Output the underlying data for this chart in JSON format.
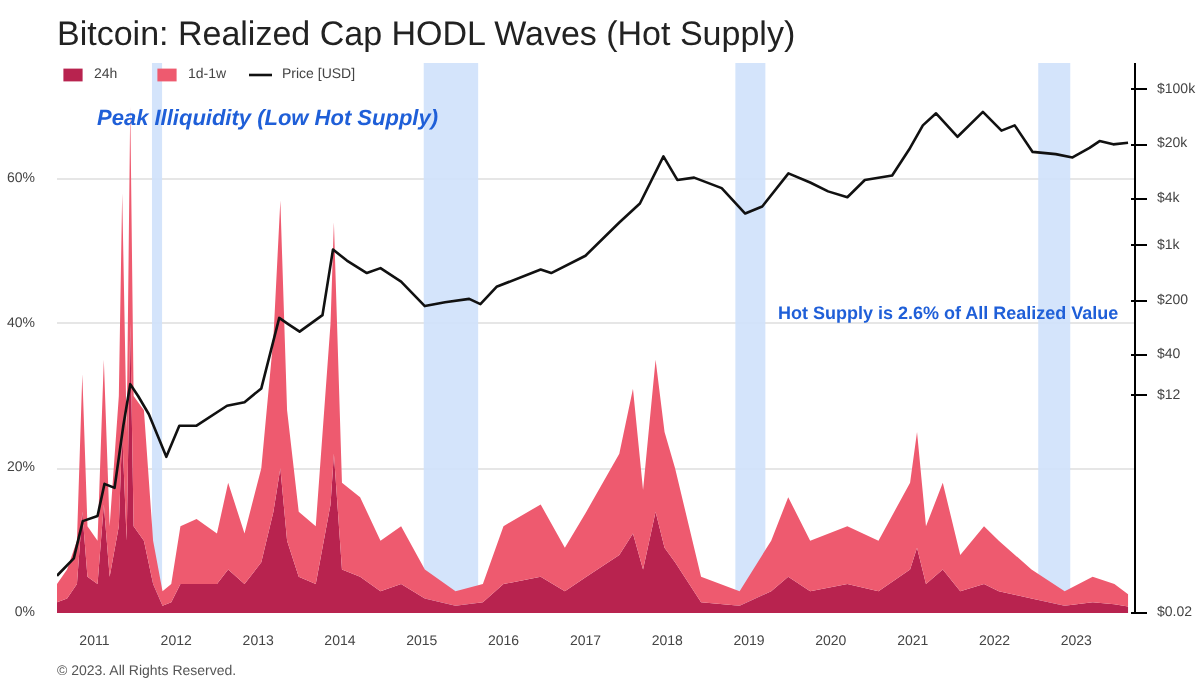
{
  "chart_data": {
    "type": "area",
    "title": "Bitcoin: Realized Cap HODL Waves (Hot Supply)",
    "stacked": true,
    "legend": "top",
    "grid": "y",
    "x": [
      "2010-07-18",
      "2010-09-01",
      "2010-10-15",
      "2010-11-08",
      "2010-12-01",
      "2011-01-15",
      "2011-02-12",
      "2011-03-10",
      "2011-04-20",
      "2011-05-05",
      "2011-05-25",
      "2011-06-10",
      "2011-06-25",
      "2011-08-10",
      "2011-09-20",
      "2011-11-01",
      "2011-12-10",
      "2012-01-20",
      "2012-04-01",
      "2012-07-01",
      "2012-08-20",
      "2012-11-01",
      "2013-01-15",
      "2013-03-10",
      "2013-04-10",
      "2013-05-10",
      "2013-07-01",
      "2013-09-15",
      "2013-11-20",
      "2013-12-05",
      "2014-01-10",
      "2014-04-01",
      "2014-07-01",
      "2014-10-01",
      "2015-01-15",
      "2015-06-01",
      "2015-10-01",
      "2016-01-01",
      "2016-06-15",
      "2016-10-01",
      "2017-01-05",
      "2017-06-01",
      "2017-08-01",
      "2017-09-15",
      "2017-11-10",
      "2017-12-20",
      "2018-02-05",
      "2018-06-01",
      "2018-11-20",
      "2019-04-10",
      "2019-06-25",
      "2019-10-01",
      "2020-03-15",
      "2020-08-01",
      "2020-12-20",
      "2021-01-20",
      "2021-03-01",
      "2021-05-15",
      "2021-08-01",
      "2021-11-15",
      "2022-01-20",
      "2022-06-15",
      "2022-11-10",
      "2023-03-15",
      "2023-06-20",
      "2023-08-20"
    ],
    "series": [
      {
        "name": "24h",
        "color": "#b8234f",
        "values": [
          1.5,
          2,
          4,
          14,
          5,
          4,
          15,
          5,
          12,
          25,
          10,
          40,
          12,
          10,
          4,
          1,
          1.5,
          4,
          4,
          4,
          6,
          4,
          7,
          14,
          20,
          10,
          5,
          4,
          15,
          22,
          6,
          5,
          3,
          4,
          2,
          1,
          1.5,
          4,
          5,
          3,
          5,
          8,
          11,
          6,
          14,
          9,
          7,
          1.5,
          1,
          3,
          5,
          3,
          4,
          3,
          6,
          9,
          4,
          6,
          3,
          4,
          3,
          2,
          1,
          1.5,
          1.2,
          0.9
        ]
      },
      {
        "name": "1d-1w",
        "color": "#ee5a6f",
        "values": [
          2.5,
          4,
          6,
          19,
          7,
          6,
          20,
          7,
          18,
          33,
          15,
          30,
          18,
          18,
          6,
          2,
          2.5,
          8,
          9,
          7,
          12,
          7,
          13,
          24,
          37,
          18,
          9,
          8,
          25,
          32,
          12,
          11,
          7,
          8,
          4,
          2,
          2.5,
          8,
          10,
          6,
          9,
          14,
          20,
          11,
          21,
          16,
          13,
          3.5,
          2,
          7,
          11,
          7,
          8,
          7,
          12,
          16,
          8,
          12,
          5,
          8,
          7,
          4,
          2,
          3.5,
          2.8,
          1.7
        ]
      },
      {
        "name": "Price [USD]",
        "type": "line",
        "axis": "y2",
        "color": "#111111",
        "x": [
          "2010-07-18",
          "2010-10-01",
          "2010-11-10",
          "2011-01-15",
          "2011-02-15",
          "2011-04-01",
          "2011-05-10",
          "2011-06-10",
          "2011-07-15",
          "2011-09-01",
          "2011-11-18",
          "2012-01-15",
          "2012-04-01",
          "2012-08-15",
          "2012-11-01",
          "2013-01-15",
          "2013-04-05",
          "2013-05-15",
          "2013-07-05",
          "2013-10-15",
          "2013-12-01",
          "2014-02-01",
          "2014-05-01",
          "2014-07-01",
          "2014-10-01",
          "2015-01-15",
          "2015-04-15",
          "2015-08-01",
          "2015-09-20",
          "2015-12-01",
          "2016-06-15",
          "2016-08-01",
          "2017-01-01",
          "2017-06-01",
          "2017-09-01",
          "2017-12-15",
          "2018-02-15",
          "2018-05-01",
          "2018-09-01",
          "2018-12-15",
          "2019-03-01",
          "2019-06-26",
          "2019-10-01",
          "2019-12-20",
          "2020-03-15",
          "2020-06-01",
          "2020-10-01",
          "2020-12-20",
          "2021-02-15",
          "2021-04-15",
          "2021-07-20",
          "2021-11-10",
          "2022-02-01",
          "2022-04-01",
          "2022-06-20",
          "2022-10-01",
          "2022-12-15",
          "2023-03-01",
          "2023-04-15",
          "2023-06-15",
          "2023-08-20"
        ],
        "values": [
          0.06,
          0.1,
          0.3,
          0.35,
          0.9,
          0.8,
          5,
          17,
          12,
          7,
          2,
          5,
          5,
          9,
          10,
          15,
          120,
          100,
          80,
          130,
          900,
          650,
          450,
          520,
          350,
          170,
          190,
          210,
          180,
          300,
          500,
          450,
          750,
          2000,
          3500,
          14000,
          7000,
          7500,
          5500,
          2600,
          3200,
          8500,
          6500,
          5000,
          4200,
          7000,
          8000,
          18000,
          35000,
          50000,
          25000,
          52000,
          30000,
          35000,
          16000,
          15000,
          13600,
          18000,
          22000,
          20000,
          21000
        ]
      }
    ],
    "xlim": [
      "2010-07-18",
      "2023-09-20"
    ],
    "xticks": [
      "2011",
      "2012",
      "2013",
      "2014",
      "2015",
      "2016",
      "2017",
      "2018",
      "2019",
      "2020",
      "2021",
      "2022",
      "2023"
    ],
    "ylim": [
      0,
      76
    ],
    "yticks": [
      {
        "value": 0,
        "label": "0%"
      },
      {
        "value": 20,
        "label": "20%"
      },
      {
        "value": 40,
        "label": "40%"
      },
      {
        "value": 60,
        "label": "60%"
      }
    ],
    "log": "y2",
    "y2lim": [
      0.02,
      220000
    ],
    "y2ticks": [
      {
        "value": 0.02,
        "label": "$0.02"
      },
      {
        "value": 12,
        "label": "$12"
      },
      {
        "value": 40,
        "label": "$40"
      },
      {
        "value": 200,
        "label": "$200"
      },
      {
        "value": 1000,
        "label": "$1k"
      },
      {
        "value": 4000,
        "label": "$4k"
      },
      {
        "value": 20000,
        "label": "$20k"
      },
      {
        "value": 100000,
        "label": "$100k"
      }
    ],
    "bands": [
      {
        "axis": "x",
        "from": "2011-09-15",
        "to": "2011-10-30",
        "label": "Peak Illiquidity (Low Hot Supply)",
        "color": "#cfe1fb"
      },
      {
        "axis": "x",
        "from": "2015-01-10",
        "to": "2015-09-10",
        "color": "#cfe1fb"
      },
      {
        "axis": "x",
        "from": "2018-11-01",
        "to": "2019-03-15",
        "color": "#cfe1fb"
      },
      {
        "axis": "x",
        "from": "2022-07-15",
        "to": "2022-12-05",
        "color": "#cfe1fb"
      }
    ],
    "annotations": [
      "Hot Supply is 2.6% of All Realized Value",
      "© 2023. All Rights Reserved."
    ]
  }
}
